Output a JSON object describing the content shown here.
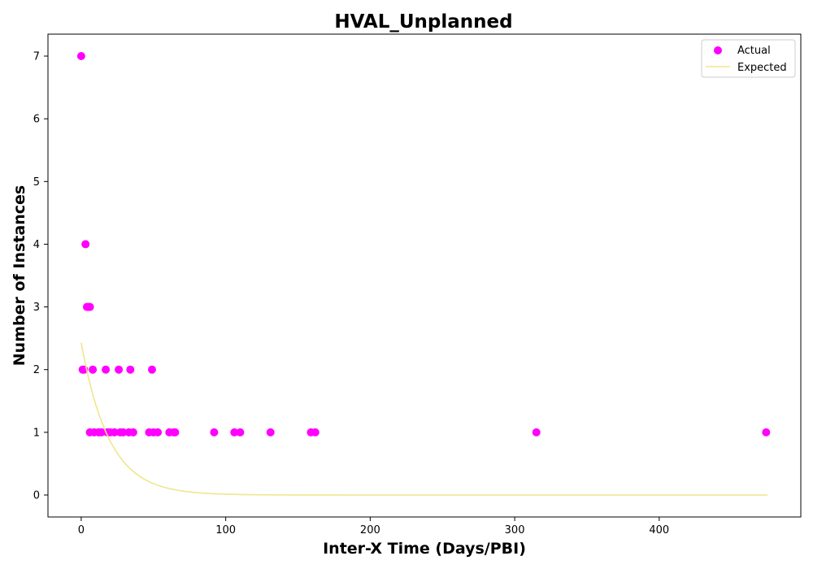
{
  "chart_data": {
    "type": "scatter",
    "title": "HVAL_Unplanned",
    "xlabel": "Inter-X Time (Days/PBI)",
    "ylabel": "Number of Instances",
    "xlim": [
      -23,
      498
    ],
    "ylim": [
      -0.35,
      7.35
    ],
    "xticks": [
      0,
      100,
      200,
      300,
      400
    ],
    "yticks": [
      0,
      1,
      2,
      3,
      4,
      5,
      6,
      7
    ],
    "grid": false,
    "legend_position": "top-right",
    "series": [
      {
        "name": "Actual",
        "kind": "scatter",
        "color": "#ff00ff",
        "points": [
          [
            0,
            7
          ],
          [
            1,
            2
          ],
          [
            2,
            2
          ],
          [
            3,
            4
          ],
          [
            4,
            3
          ],
          [
            5,
            3
          ],
          [
            6,
            3
          ],
          [
            6,
            1
          ],
          [
            8,
            2
          ],
          [
            9,
            1
          ],
          [
            12,
            1
          ],
          [
            14,
            1
          ],
          [
            17,
            2
          ],
          [
            18,
            1
          ],
          [
            20,
            1
          ],
          [
            23,
            1
          ],
          [
            26,
            2
          ],
          [
            27,
            1
          ],
          [
            29,
            1
          ],
          [
            33,
            1
          ],
          [
            34,
            2
          ],
          [
            36,
            1
          ],
          [
            47,
            1
          ],
          [
            49,
            2
          ],
          [
            50,
            1
          ],
          [
            53,
            1
          ],
          [
            61,
            1
          ],
          [
            64,
            1
          ],
          [
            65,
            1
          ],
          [
            92,
            1
          ],
          [
            106,
            1
          ],
          [
            110,
            1
          ],
          [
            131,
            1
          ],
          [
            159,
            1
          ],
          [
            162,
            1
          ],
          [
            315,
            1
          ],
          [
            474,
            1
          ]
        ]
      },
      {
        "name": "Expected",
        "kind": "line",
        "color": "#f0e68c",
        "function": "2.43 * exp(-x / 19.3)",
        "x_range": [
          0,
          475
        ]
      }
    ]
  }
}
